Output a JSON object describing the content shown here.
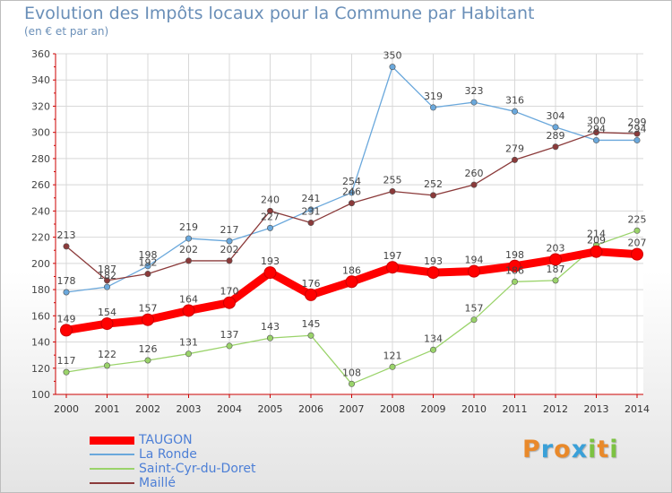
{
  "header": {
    "title": "Evolution des Impôts locaux pour la Commune par Habitant",
    "subtitle": "(en € et par an)"
  },
  "brand": {
    "letters": [
      "P",
      "r",
      "o",
      "x",
      "i",
      "t",
      "i"
    ],
    "colors": [
      "#e9892a",
      "#3aa0d8",
      "#e9892a",
      "#3aa0d8",
      "#7cc242",
      "#e9892a",
      "#7cc242"
    ]
  },
  "chart_data": {
    "type": "line",
    "x": [
      "2000",
      "2001",
      "2002",
      "2003",
      "2004",
      "2005",
      "2006",
      "2007",
      "2008",
      "2009",
      "2010",
      "2011",
      "2012",
      "2013",
      "2014"
    ],
    "ylim": [
      100,
      360
    ],
    "yticks": [
      "100",
      "120",
      "140",
      "160",
      "180",
      "200",
      "220",
      "240",
      "260",
      "280",
      "300",
      "320",
      "340",
      "360"
    ],
    "grid": true,
    "legend_position": "bottom-left",
    "series": [
      {
        "name": "TAUGON",
        "color": "#ff0000",
        "values": [
          149,
          154,
          157,
          164,
          170,
          193,
          176,
          186,
          197,
          193,
          194,
          198,
          203,
          209,
          207
        ],
        "labels": [
          "149",
          "154",
          "157",
          "164",
          "170",
          "193",
          "176",
          "186",
          "197",
          "193",
          "194",
          "198",
          "203",
          "209",
          "207"
        ]
      },
      {
        "name": "La Ronde",
        "color": "#6aa8dc",
        "values": [
          178,
          182,
          198,
          219,
          217,
          227,
          241,
          254,
          350,
          319,
          323,
          316,
          304,
          294,
          294
        ],
        "labels": [
          "178",
          "182",
          "198",
          "219",
          "217",
          "227",
          "241",
          "254",
          "350",
          "319",
          "323",
          "316",
          "304",
          "294",
          "294"
        ]
      },
      {
        "name": "Saint-Cyr-du-Doret",
        "color": "#9ad36a",
        "values": [
          117,
          122,
          126,
          131,
          137,
          143,
          145,
          108,
          121,
          134,
          157,
          186,
          187,
          214,
          225
        ],
        "labels": [
          "117",
          "122",
          "126",
          "131",
          "137",
          "143",
          "145",
          "108",
          "121",
          "134",
          "157",
          "186",
          "187",
          "214",
          "225"
        ]
      },
      {
        "name": "Maillé",
        "color": "#8b3a3a",
        "values": [
          213,
          187,
          192,
          202,
          202,
          240,
          231,
          246,
          255,
          252,
          260,
          279,
          289,
          300,
          299
        ],
        "labels": [
          "213",
          "187",
          "192",
          "202",
          "202",
          "240",
          "231",
          "246",
          "255",
          "252",
          "260",
          "279",
          "289",
          "300",
          "299"
        ]
      }
    ]
  }
}
